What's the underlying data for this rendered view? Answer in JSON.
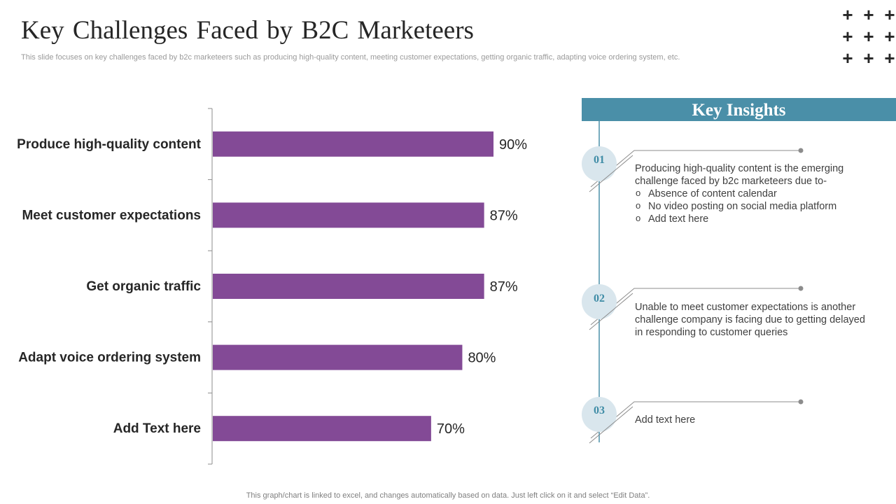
{
  "header": {
    "title": "Key Challenges Faced by B2C Marketeers",
    "subtitle": "This slide focuses on key challenges faced by b2c marketeers such as producing high-quality content, meeting customer expectations, getting organic traffic, adapting voice ordering system, etc."
  },
  "decoration": {
    "plus_symbol": "+"
  },
  "chart_data": {
    "type": "bar",
    "orientation": "horizontal",
    "title": "",
    "xlabel": "",
    "ylabel": "",
    "xlim": [
      0,
      100
    ],
    "grid": false,
    "categories": [
      "Produce high-quality content",
      "Meet customer expectations",
      "Get organic traffic",
      "Adapt voice ordering system",
      "Add Text here"
    ],
    "values": [
      90,
      87,
      87,
      80,
      70
    ],
    "value_labels": [
      "90%",
      "87%",
      "87%",
      "80%",
      "70%"
    ],
    "bar_color": "#834a96"
  },
  "insights": {
    "title": "Key Insights",
    "accent_color": "#4a8fa8",
    "items": [
      {
        "number": "01",
        "text": "Producing high-quality content is the emerging challenge faced by b2c marketeers due to-",
        "bullets": [
          "Absence of content calendar",
          "No video posting on social media platform",
          "Add text here"
        ]
      },
      {
        "number": "02",
        "text": "Unable to meet customer expectations is another challenge company is facing due to getting delayed in responding to customer queries",
        "bullets": []
      },
      {
        "number": "03",
        "text": "Add text here",
        "bullets": []
      }
    ]
  },
  "footer": {
    "note": "This graph/chart is linked to excel,  and changes automatically based on data. Just left click on it and select “Edit Data”."
  }
}
